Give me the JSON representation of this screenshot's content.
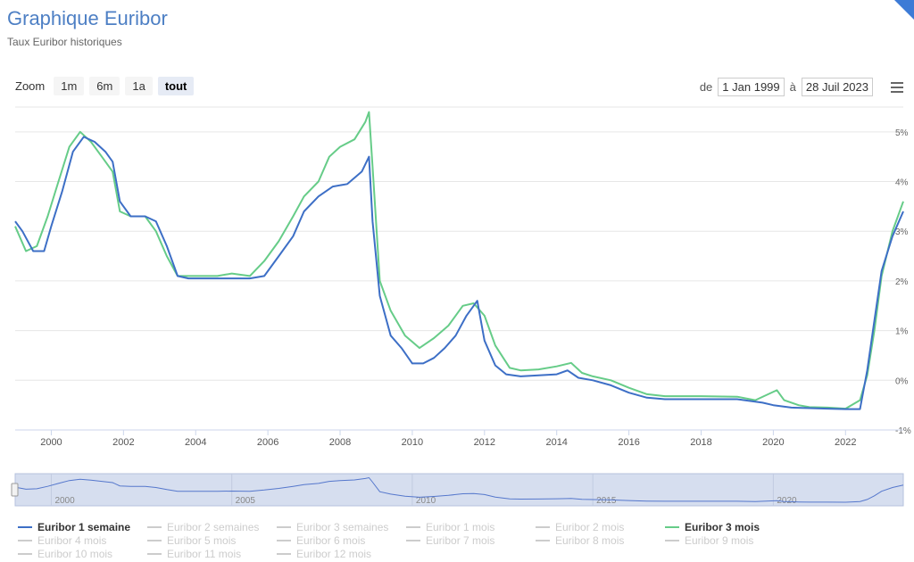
{
  "header": {
    "title": "Graphique Euribor",
    "subtitle": "Taux Euribor historiques"
  },
  "zoom": {
    "label": "Zoom",
    "buttons": [
      "1m",
      "6m",
      "1a",
      "tout"
    ],
    "active": "tout"
  },
  "range": {
    "from_label": "de",
    "from_value": "1 Jan 1999",
    "to_label": "à",
    "to_value": "28 Juil 2023"
  },
  "colors": {
    "series_1w": "#3d6fc6",
    "series_3m": "#66cc88",
    "navigator_fill": "#d6deef",
    "navigator_line": "#5577cc",
    "grid": "#e6e6e6",
    "legend_inactive": "#cccccc"
  },
  "chart_data": {
    "type": "line",
    "xlabel": "",
    "ylabel": "",
    "x_ticks": [
      "2000",
      "2002",
      "2004",
      "2006",
      "2008",
      "2010",
      "2012",
      "2014",
      "2016",
      "2018",
      "2020",
      "2022"
    ],
    "y_ticks": [
      "5%",
      "4%",
      "3%",
      "2%",
      "1%",
      "0%",
      "-1%"
    ],
    "y_tick_labels_visible": [
      "5%",
      "4%",
      "3%",
      "2%",
      "1%",
      "0%",
      "-1%"
    ],
    "ylim": [
      -1,
      5.5
    ],
    "xlim": [
      1999.0,
      2023.6
    ],
    "grid": true,
    "series": [
      {
        "name": "Euribor 1 semaine",
        "x": [
          1999.0,
          1999.2,
          1999.5,
          1999.8,
          2000.0,
          2000.3,
          2000.6,
          2000.9,
          2001.2,
          2001.5,
          2001.7,
          2001.9,
          2002.2,
          2002.6,
          2002.9,
          2003.2,
          2003.5,
          2003.8,
          2004.2,
          2004.6,
          2005.0,
          2005.5,
          2005.9,
          2006.3,
          2006.7,
          2007.0,
          2007.4,
          2007.8,
          2008.2,
          2008.6,
          2008.8,
          2008.9,
          2009.1,
          2009.4,
          2009.7,
          2010.0,
          2010.3,
          2010.6,
          2010.9,
          2011.2,
          2011.5,
          2011.8,
          2012.0,
          2012.3,
          2012.6,
          2013.0,
          2013.5,
          2014.0,
          2014.3,
          2014.6,
          2015.0,
          2015.5,
          2016.0,
          2016.5,
          2017.0,
          2018.0,
          2019.0,
          2019.7,
          2020.0,
          2020.5,
          2021.0,
          2021.5,
          2022.0,
          2022.4,
          2022.6,
          2022.8,
          2023.0,
          2023.3,
          2023.6
        ],
        "values": [
          3.2,
          3.0,
          2.6,
          2.6,
          3.1,
          3.8,
          4.6,
          4.9,
          4.8,
          4.6,
          4.4,
          3.6,
          3.3,
          3.3,
          3.2,
          2.7,
          2.1,
          2.05,
          2.05,
          2.05,
          2.05,
          2.05,
          2.1,
          2.5,
          2.9,
          3.4,
          3.7,
          3.9,
          3.95,
          4.2,
          4.5,
          3.2,
          1.7,
          0.9,
          0.65,
          0.34,
          0.34,
          0.45,
          0.65,
          0.9,
          1.3,
          1.6,
          0.8,
          0.3,
          0.12,
          0.08,
          0.1,
          0.12,
          0.2,
          0.05,
          0.0,
          -0.1,
          -0.25,
          -0.35,
          -0.38,
          -0.38,
          -0.38,
          -0.45,
          -0.5,
          -0.55,
          -0.56,
          -0.57,
          -0.58,
          -0.58,
          0.2,
          1.2,
          2.2,
          2.9,
          3.4
        ]
      },
      {
        "name": "Euribor 3 mois",
        "x": [
          1999.0,
          1999.3,
          1999.6,
          1999.9,
          2000.2,
          2000.5,
          2000.8,
          2001.1,
          2001.4,
          2001.7,
          2001.9,
          2002.2,
          2002.6,
          2002.9,
          2003.2,
          2003.5,
          2003.8,
          2004.2,
          2004.6,
          2005.0,
          2005.5,
          2005.9,
          2006.3,
          2006.7,
          2007.0,
          2007.4,
          2007.7,
          2008.0,
          2008.4,
          2008.7,
          2008.8,
          2008.9,
          2009.1,
          2009.4,
          2009.8,
          2010.2,
          2010.6,
          2011.0,
          2011.4,
          2011.7,
          2012.0,
          2012.3,
          2012.7,
          2013.0,
          2013.5,
          2014.0,
          2014.4,
          2014.7,
          2015.0,
          2015.5,
          2016.0,
          2016.5,
          2017.0,
          2018.0,
          2019.0,
          2019.5,
          2020.1,
          2020.3,
          2020.7,
          2021.0,
          2021.5,
          2022.0,
          2022.4,
          2022.6,
          2022.8,
          2023.0,
          2023.3,
          2023.6
        ],
        "values": [
          3.1,
          2.6,
          2.7,
          3.3,
          4.0,
          4.7,
          5.0,
          4.8,
          4.5,
          4.2,
          3.4,
          3.3,
          3.3,
          3.0,
          2.5,
          2.1,
          2.1,
          2.1,
          2.1,
          2.15,
          2.1,
          2.4,
          2.8,
          3.3,
          3.7,
          4.0,
          4.5,
          4.7,
          4.85,
          5.2,
          5.4,
          4.3,
          2.0,
          1.4,
          0.9,
          0.65,
          0.85,
          1.1,
          1.5,
          1.55,
          1.3,
          0.7,
          0.25,
          0.2,
          0.22,
          0.28,
          0.35,
          0.15,
          0.08,
          0.0,
          -0.15,
          -0.28,
          -0.32,
          -0.32,
          -0.33,
          -0.4,
          -0.2,
          -0.4,
          -0.5,
          -0.54,
          -0.55,
          -0.57,
          -0.4,
          0.1,
          1.0,
          2.1,
          3.0,
          3.6
        ]
      }
    ],
    "navigator": {
      "x_ticks": [
        "2000",
        "2005",
        "2010",
        "2015",
        "2020"
      ]
    }
  },
  "legend": {
    "items": [
      {
        "label": "Euribor 1 semaine",
        "active": true,
        "color": "#3d6fc6"
      },
      {
        "label": "Euribor 2 semaines",
        "active": false
      },
      {
        "label": "Euribor 3 semaines",
        "active": false
      },
      {
        "label": "Euribor 1 mois",
        "active": false
      },
      {
        "label": "Euribor 2 mois",
        "active": false
      },
      {
        "label": "Euribor 3 mois",
        "active": true,
        "color": "#66cc88"
      },
      {
        "label": "Euribor 4 mois",
        "active": false
      },
      {
        "label": "Euribor 5 mois",
        "active": false
      },
      {
        "label": "Euribor 6 mois",
        "active": false
      },
      {
        "label": "Euribor 7 mois",
        "active": false
      },
      {
        "label": "Euribor 8 mois",
        "active": false
      },
      {
        "label": "Euribor 9 mois",
        "active": false
      },
      {
        "label": "Euribor 10 mois",
        "active": false
      },
      {
        "label": "Euribor 11 mois",
        "active": false
      },
      {
        "label": "Euribor 12 mois",
        "active": false
      }
    ]
  }
}
